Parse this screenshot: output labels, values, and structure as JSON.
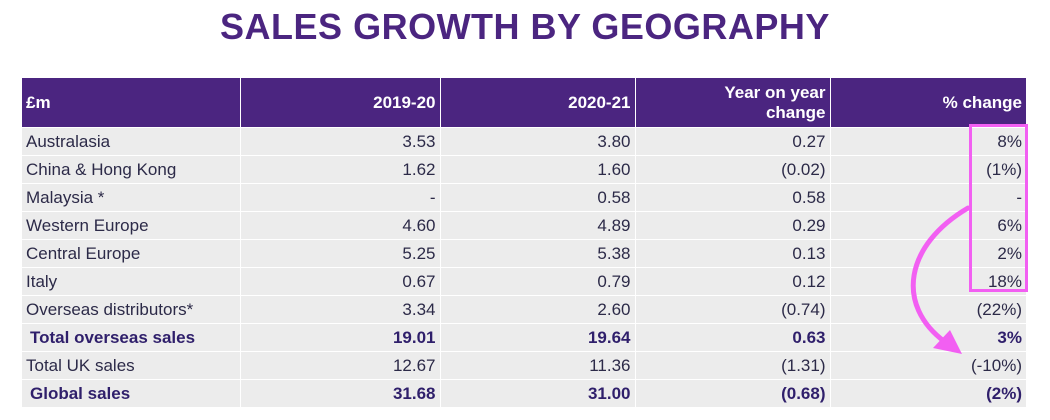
{
  "title": "SALES GROWTH BY GEOGRAPHY",
  "header": {
    "col0": "£m",
    "col1": "2019-20",
    "col2": "2020-21",
    "col3_line1": "Year on year",
    "col3_line2": "change",
    "col4": "% change"
  },
  "rows": [
    {
      "region": "Australasia",
      "y2019": "3.53",
      "y2020": "3.80",
      "yoy": "0.27",
      "pct": "8%"
    },
    {
      "region": "China & Hong Kong",
      "y2019": "1.62",
      "y2020": "1.60",
      "yoy": "(0.02)",
      "pct": "(1%)"
    },
    {
      "region": "Malaysia *",
      "y2019": "-",
      "y2020": "0.58",
      "yoy": "0.58",
      "pct": "-"
    },
    {
      "region": "Western Europe",
      "y2019": "4.60",
      "y2020": "4.89",
      "yoy": "0.29",
      "pct": "6%"
    },
    {
      "region": "Central Europe",
      "y2019": "5.25",
      "y2020": "5.38",
      "yoy": "0.13",
      "pct": "2%"
    },
    {
      "region": "Italy",
      "y2019": "0.67",
      "y2020": "0.79",
      "yoy": "0.12",
      "pct": "18%"
    },
    {
      "region": "Overseas distributors*",
      "y2019": "3.34",
      "y2020": "2.60",
      "yoy": "(0.74)",
      "pct": "(22%)"
    },
    {
      "region": "Total overseas sales",
      "y2019": "19.01",
      "y2020": "19.64",
      "yoy": "0.63",
      "pct": "3%",
      "bold": true
    },
    {
      "region": "Total UK sales",
      "y2019": "12.67",
      "y2020": "11.36",
      "yoy": "(1.31)",
      "pct": "(-10%)"
    },
    {
      "region": "Global sales",
      "y2019": "31.68",
      "y2020": "31.00",
      "yoy": "(0.68)",
      "pct": "(2%)",
      "bold": true
    }
  ],
  "colors": {
    "header_bg": "#4b2580",
    "row_bg": "#ececec",
    "title": "#4b2580",
    "highlight": "#f25ff2"
  }
}
